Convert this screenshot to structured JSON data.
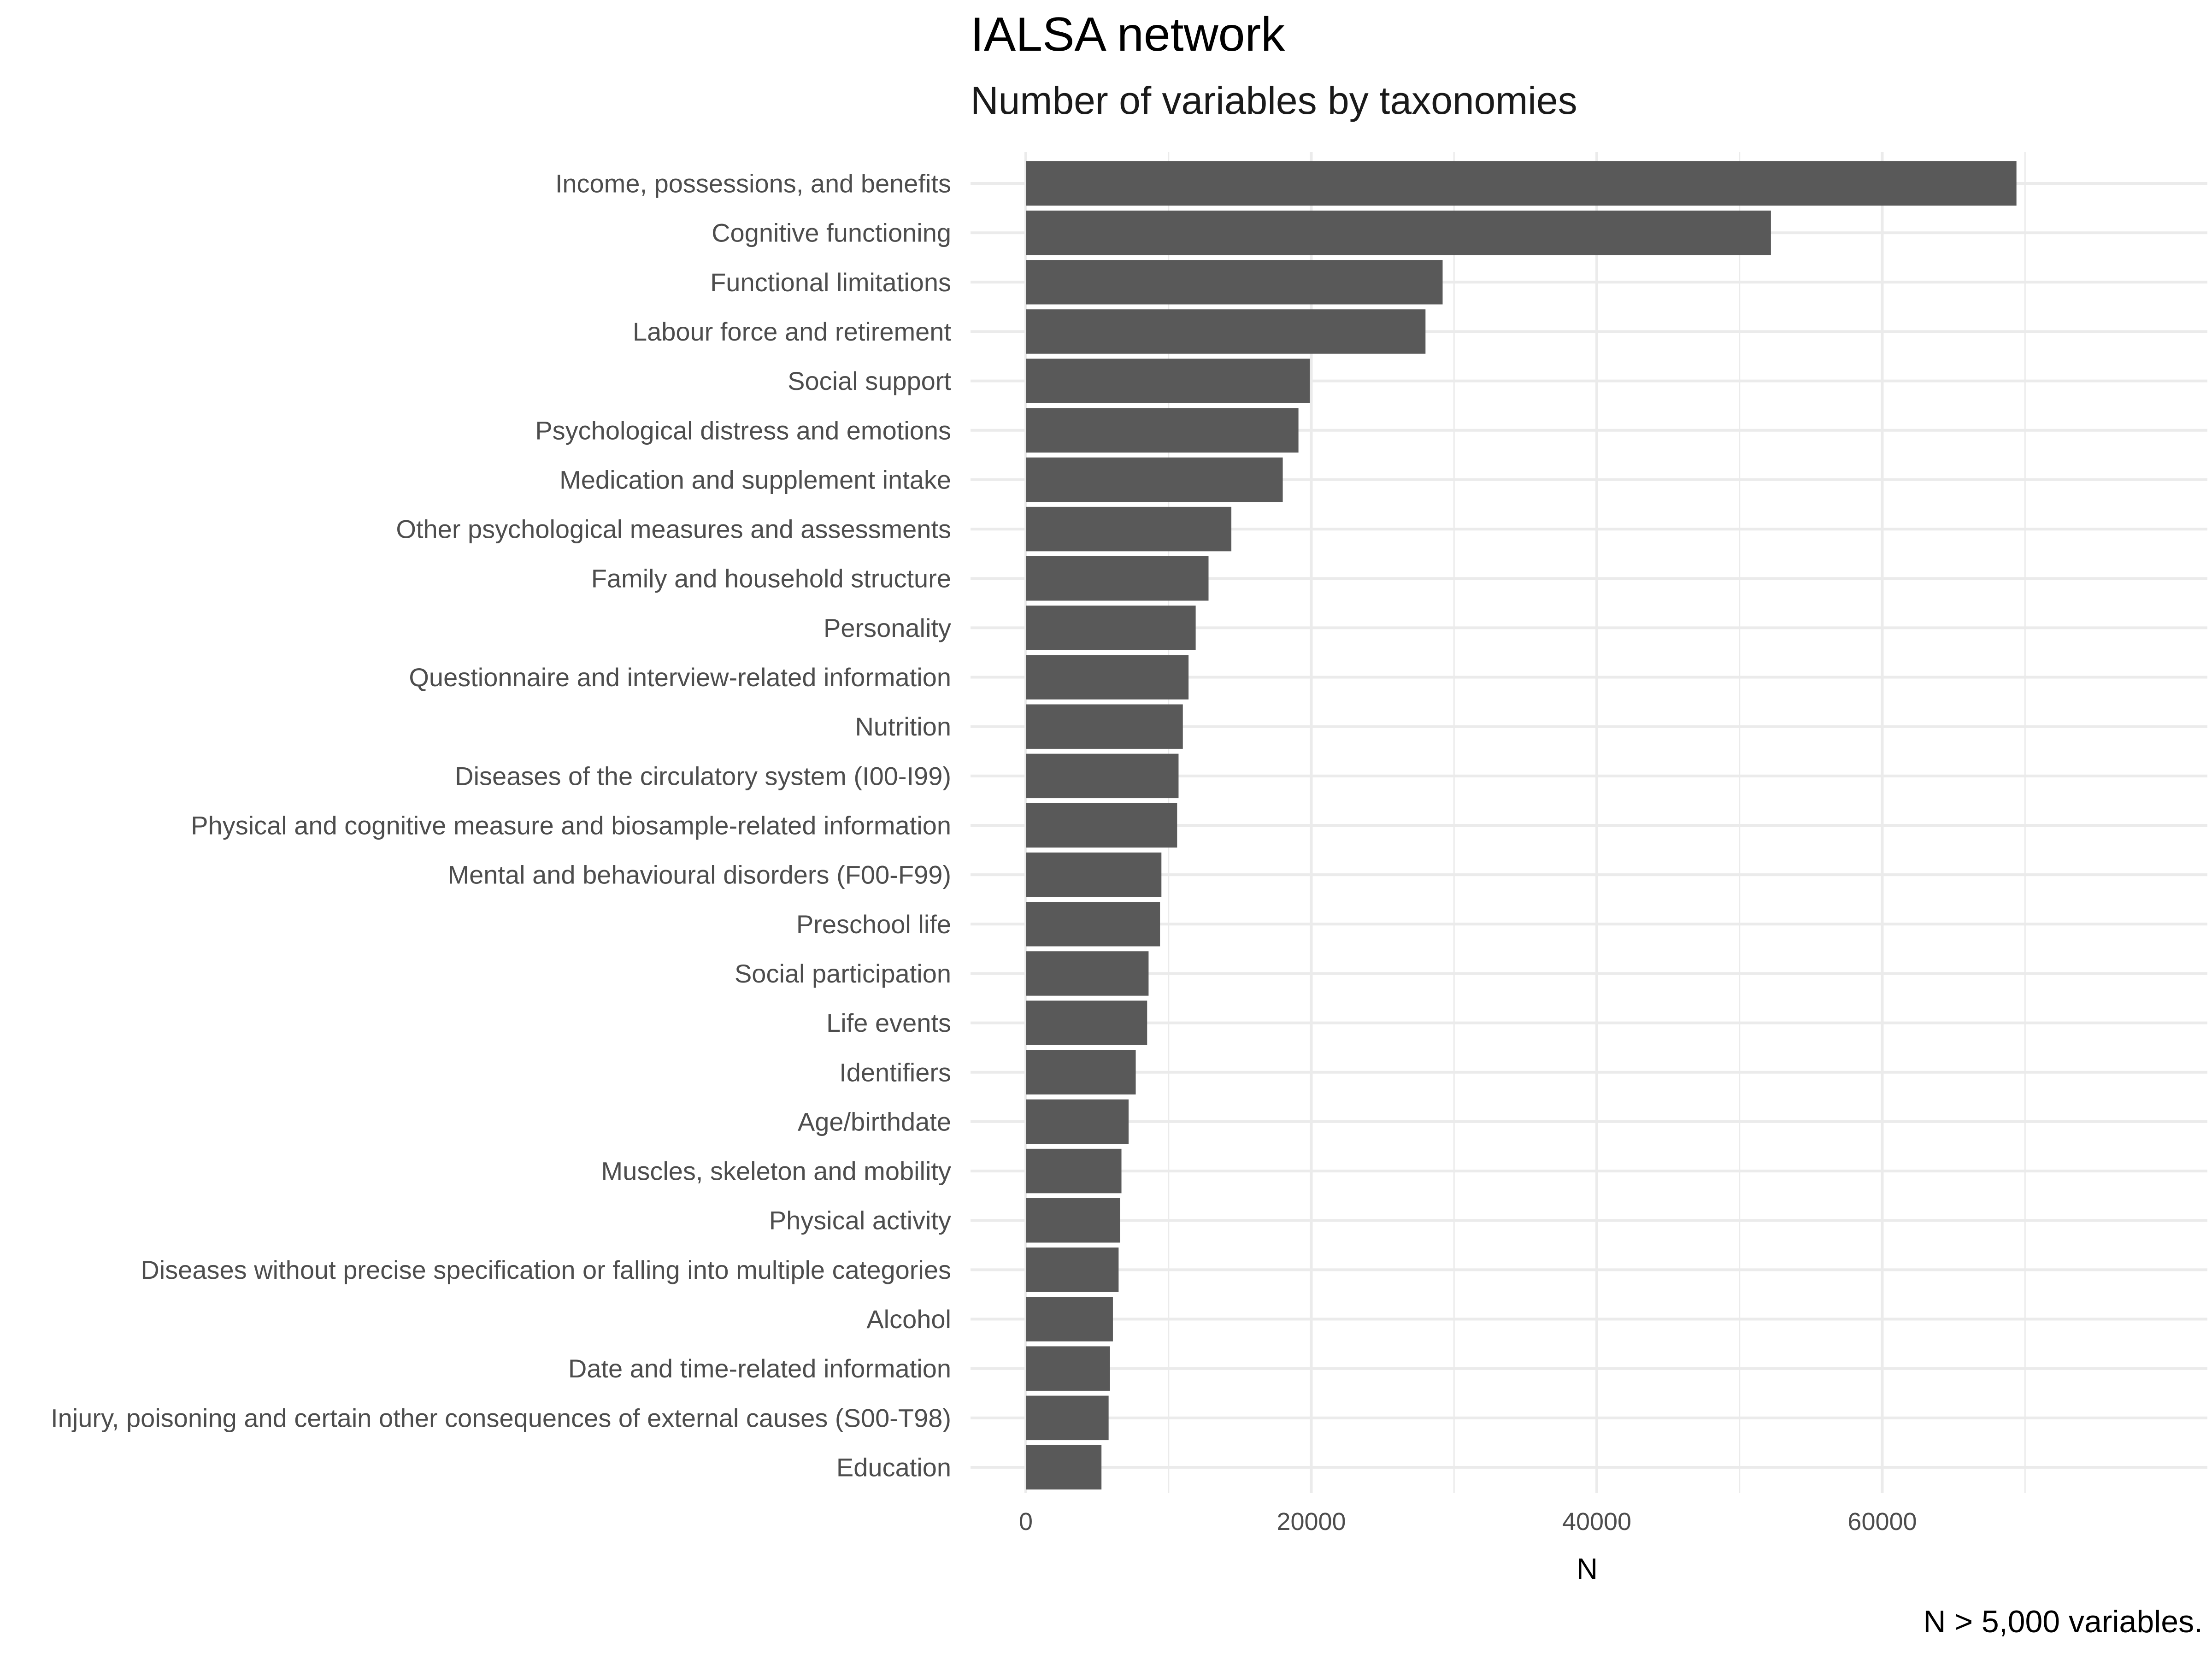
{
  "chart_data": {
    "type": "bar",
    "orientation": "horizontal",
    "title": "IALSA network",
    "subtitle": "Number of variables by taxonomies",
    "xlabel": "N",
    "ylabel": "",
    "caption": "N > 5,000 variables.",
    "xlim": [
      0,
      72000
    ],
    "x_ticks": [
      0,
      20000,
      40000,
      60000
    ],
    "x_tick_labels": [
      "0",
      "20000",
      "40000",
      "60000"
    ],
    "grid": true,
    "legend": "none",
    "bar_color": "#595959",
    "grid_color": "#ebebeb",
    "categories": [
      "Income, possessions, and benefits",
      "Cognitive functioning",
      "Functional limitations",
      "Labour force and retirement",
      "Social support",
      "Psychological distress and emotions",
      "Medication and supplement intake",
      "Other psychological measures and assessments",
      "Family and household structure",
      "Personality",
      "Questionnaire and interview-related information",
      "Nutrition",
      "Diseases of the circulatory system (I00-I99)",
      "Physical and cognitive measure and biosample-related information",
      "Mental and behavioural disorders (F00-F99)",
      "Preschool life",
      "Social participation",
      "Life events",
      "Identifiers",
      "Age/birthdate",
      "Muscles, skeleton and mobility",
      "Physical activity",
      "Diseases without precise specification or falling into multiple categories",
      "Alcohol",
      "Date and time-related information",
      "Injury, poisoning and certain other consequences of external causes (S00-T98)",
      "Education"
    ],
    "values": [
      69400,
      52200,
      29200,
      28000,
      19900,
      19100,
      18000,
      14400,
      12800,
      11900,
      11400,
      11000,
      10700,
      10600,
      9500,
      9400,
      8600,
      8500,
      7700,
      7200,
      6700,
      6600,
      6500,
      6100,
      5900,
      5800,
      5300
    ]
  }
}
